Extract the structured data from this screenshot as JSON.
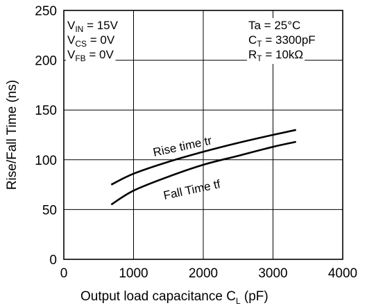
{
  "chart_data": {
    "type": "line",
    "xlabel": "Output load capacitance",
    "xlabel_symbol": {
      "main": "C",
      "sub": "L",
      "unit": "(pF)"
    },
    "ylabel": "Rise/Fall Time  (ns)",
    "xlim": [
      0,
      4000
    ],
    "ylim": [
      0,
      250
    ],
    "x_ticks": [
      "0",
      "1000",
      "2000",
      "3000",
      "4000"
    ],
    "y_ticks": [
      "0",
      "50",
      "100",
      "150",
      "200",
      "250"
    ],
    "grid": true,
    "conditions_left": [
      {
        "main": "V",
        "sub": "IN",
        "rest": " = 15V"
      },
      {
        "main": "V",
        "sub": "CS",
        "rest": " = 0V"
      },
      {
        "main": "V",
        "sub": "FB",
        "rest": " = 0V"
      }
    ],
    "conditions_right": [
      {
        "main": "Ta = 25°C",
        "sub": "",
        "rest": ""
      },
      {
        "main": "C",
        "sub": "T",
        "rest": " = 3300pF"
      },
      {
        "main": "R",
        "sub": "T",
        "rest": " = 10kΩ"
      }
    ],
    "series": [
      {
        "name": "Rise time tr",
        "x": [
          680,
          1000,
          1500,
          2000,
          2500,
          3000,
          3330
        ],
        "y": [
          75,
          86,
          98,
          108,
          117,
          125,
          130
        ]
      },
      {
        "name": "Fall Time tf",
        "x": [
          680,
          1000,
          1500,
          2000,
          2500,
          3000,
          3330
        ],
        "y": [
          55,
          69,
          83,
          95,
          104,
          113,
          118
        ]
      }
    ]
  }
}
